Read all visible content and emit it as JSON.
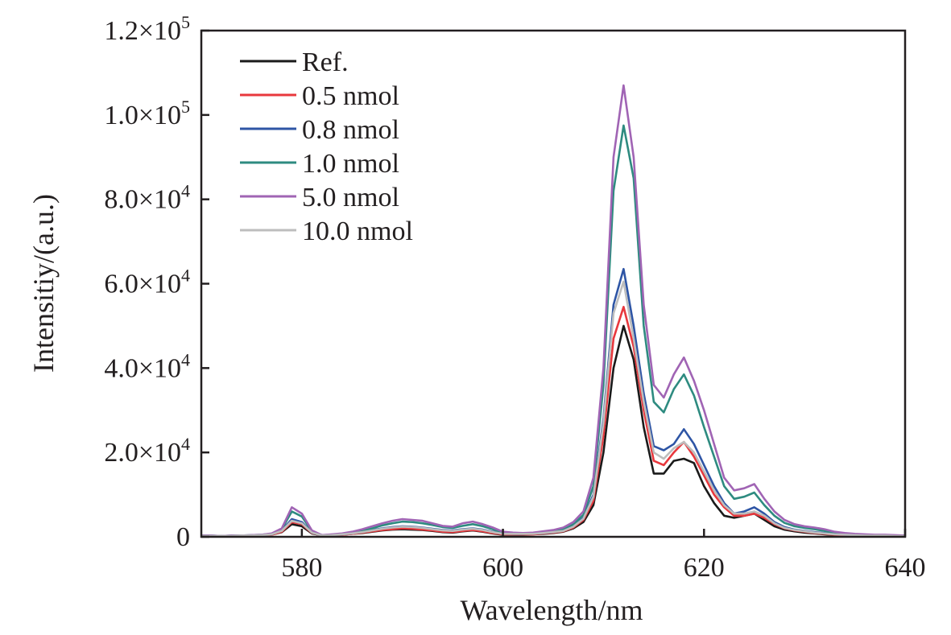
{
  "chart_data": {
    "type": "line",
    "title": "",
    "xlabel": "Wavelength/nm",
    "ylabel": "Intensitiy/(a.u.)",
    "xlim": [
      570,
      640
    ],
    "ylim": [
      0,
      120000
    ],
    "grid": false,
    "legend_position": "top-left",
    "xticks": [
      580,
      600,
      620,
      640
    ],
    "xtick_labels": [
      "580",
      "600",
      "620",
      "640"
    ],
    "yticks": [
      0,
      20000,
      40000,
      60000,
      80000,
      100000,
      120000
    ],
    "ytick_labels": [
      {
        "base": "0",
        "exp": ""
      },
      {
        "base": "2.0×10",
        "exp": "4"
      },
      {
        "base": "4.0×10",
        "exp": "4"
      },
      {
        "base": "6.0×10",
        "exp": "4"
      },
      {
        "base": "8.0×10",
        "exp": "4"
      },
      {
        "base": "1.0×10",
        "exp": "5"
      },
      {
        "base": "1.2×10",
        "exp": "5"
      }
    ],
    "x": [
      570,
      571,
      572,
      573,
      574,
      575,
      576,
      577,
      578,
      579,
      580,
      581,
      582,
      583,
      584,
      585,
      586,
      587,
      588,
      589,
      590,
      591,
      592,
      593,
      594,
      595,
      596,
      597,
      598,
      599,
      600,
      601,
      602,
      603,
      604,
      605,
      606,
      607,
      608,
      609,
      610,
      611,
      612,
      613,
      614,
      615,
      616,
      617,
      618,
      619,
      620,
      621,
      622,
      623,
      624,
      625,
      626,
      627,
      628,
      629,
      630,
      631,
      632,
      633,
      634,
      635,
      636,
      637,
      638,
      639,
      640
    ],
    "series": [
      {
        "name": "Ref.",
        "color": "#1a1a1a",
        "values": [
          200,
          200,
          200,
          200,
          200,
          300,
          300,
          500,
          1100,
          3000,
          2500,
          800,
          300,
          400,
          500,
          700,
          900,
          1200,
          1500,
          1700,
          1800,
          1700,
          1600,
          1400,
          1100,
          1000,
          1300,
          1500,
          1200,
          800,
          500,
          500,
          500,
          600,
          700,
          900,
          1200,
          2000,
          3500,
          7500,
          20000,
          40000,
          50000,
          42000,
          26000,
          15000,
          15000,
          18000,
          18500,
          17500,
          12000,
          8000,
          5000,
          4500,
          5000,
          5500,
          4000,
          2500,
          1700,
          1300,
          1000,
          800,
          600,
          400,
          300,
          300,
          200,
          200,
          200,
          200,
          100
        ]
      },
      {
        "name": "0.5 nmol",
        "color": "#e8383d",
        "values": [
          200,
          200,
          200,
          200,
          200,
          300,
          300,
          500,
          1200,
          3500,
          3000,
          900,
          300,
          400,
          500,
          700,
          1000,
          1300,
          1600,
          1800,
          2000,
          1900,
          1700,
          1500,
          1200,
          1100,
          1400,
          1600,
          1300,
          900,
          600,
          600,
          600,
          600,
          800,
          1000,
          1300,
          2200,
          4000,
          8500,
          24000,
          47000,
          54500,
          45000,
          30000,
          18000,
          17000,
          20000,
          22500,
          19000,
          14500,
          10000,
          7000,
          5000,
          5000,
          5500,
          4500,
          3000,
          2000,
          1500,
          1200,
          900,
          700,
          500,
          400,
          300,
          300,
          200,
          200,
          200,
          200
        ]
      },
      {
        "name": "0.8 nmol",
        "color": "#2e55a5",
        "values": [
          200,
          200,
          200,
          200,
          300,
          300,
          400,
          600,
          1500,
          4200,
          3500,
          1000,
          300,
          400,
          600,
          800,
          1200,
          1600,
          2000,
          2300,
          2500,
          2400,
          2200,
          1900,
          1600,
          1500,
          1800,
          2000,
          1700,
          1200,
          800,
          700,
          700,
          800,
          900,
          1100,
          1500,
          2500,
          4500,
          10000,
          28000,
          55000,
          63500,
          50000,
          34000,
          21500,
          20500,
          22000,
          25500,
          22000,
          17000,
          12000,
          8000,
          5500,
          6000,
          7000,
          5500,
          3500,
          2300,
          1700,
          1400,
          1100,
          900,
          700,
          500,
          400,
          300,
          300,
          300,
          200,
          200
        ]
      },
      {
        "name": "1.0 nmol",
        "color": "#2e8b80",
        "values": [
          300,
          300,
          200,
          300,
          300,
          400,
          500,
          700,
          1800,
          6000,
          4800,
          1300,
          400,
          500,
          700,
          1000,
          1500,
          2000,
          2700,
          3200,
          3600,
          3500,
          3200,
          2800,
          2300,
          2100,
          2600,
          3000,
          2500,
          1800,
          1000,
          900,
          800,
          900,
          1100,
          1400,
          1900,
          3000,
          5200,
          12000,
          36000,
          82000,
          97500,
          85000,
          50000,
          32000,
          29500,
          35000,
          38500,
          33500,
          26000,
          19000,
          12000,
          9000,
          9500,
          10500,
          7500,
          5000,
          3300,
          2500,
          2100,
          1800,
          1400,
          1000,
          800,
          600,
          500,
          400,
          400,
          300,
          300
        ]
      },
      {
        "name": "5.0 nmol",
        "color": "#a064b4",
        "values": [
          300,
          300,
          200,
          300,
          300,
          400,
          500,
          800,
          2000,
          7000,
          5500,
          1500,
          400,
          600,
          800,
          1200,
          1800,
          2500,
          3200,
          3800,
          4200,
          4000,
          3800,
          3200,
          2600,
          2400,
          3200,
          3600,
          3000,
          2200,
          1200,
          1000,
          900,
          1000,
          1300,
          1600,
          2200,
          3500,
          6000,
          14000,
          40000,
          90000,
          107000,
          90000,
          55000,
          36000,
          33000,
          38500,
          42500,
          37000,
          30000,
          22000,
          14000,
          11000,
          11500,
          12500,
          9000,
          6000,
          4000,
          3000,
          2500,
          2200,
          1800,
          1200,
          900,
          700,
          600,
          500,
          500,
          400,
          300
        ]
      },
      {
        "name": "10.0 nmol",
        "color": "#bdbdbd",
        "values": [
          200,
          200,
          200,
          200,
          300,
          300,
          400,
          600,
          1400,
          3800,
          3200,
          1000,
          300,
          400,
          600,
          800,
          1100,
          1500,
          1900,
          2200,
          2400,
          2300,
          2100,
          1800,
          1500,
          1400,
          1700,
          1900,
          1600,
          1100,
          700,
          700,
          700,
          700,
          900,
          1100,
          1400,
          2400,
          4300,
          9500,
          27000,
          53000,
          60500,
          47000,
          32000,
          20000,
          18500,
          21000,
          22500,
          20000,
          15500,
          11000,
          7500,
          5500,
          5500,
          6000,
          5000,
          3200,
          2100,
          1600,
          1300,
          1000,
          800,
          600,
          500,
          400,
          300,
          300,
          300,
          200,
          200
        ]
      }
    ]
  }
}
